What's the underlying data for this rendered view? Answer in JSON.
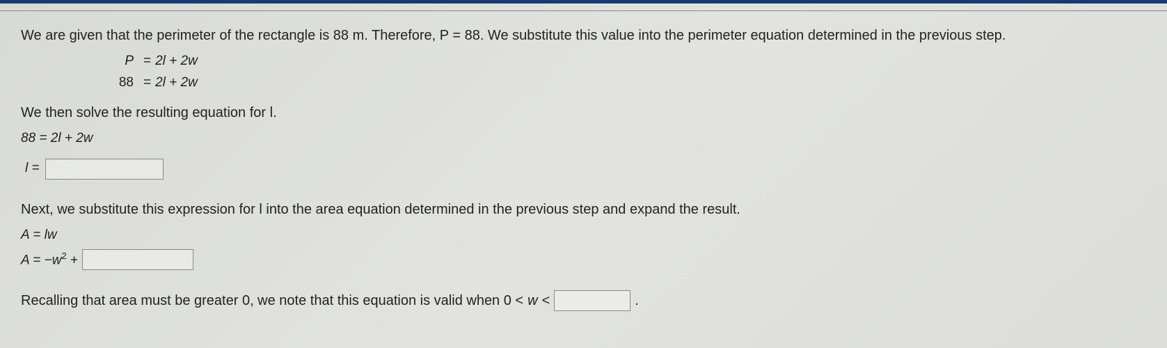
{
  "colors": {
    "top_bar": "#1a3a6e",
    "text": "#222222",
    "box_border": "#888888",
    "bg_tint": "#dcddd9"
  },
  "intro": "We are given that the perimeter of the rectangle is 88 m. Therefore, P = 88. We substitute this value into the perimeter equation determined in the previous step.",
  "eq1": {
    "lhs": "P",
    "rhs": "2l + 2w"
  },
  "eq2": {
    "lhs": "88",
    "rhs": "2l + 2w"
  },
  "solve_prompt": "We then solve the resulting equation for l.",
  "eq3": "88 = 2l + 2w",
  "l_equals_label": "l =",
  "substitute_prompt": "Next, we substitute this expression for l into the area equation determined in the previous step and expand the result.",
  "area_eq": "A = lw",
  "area_expand_prefix": "A = −w",
  "area_expand_exp": "2",
  "area_expand_plus": " + ",
  "final_prefix": "Recalling that area must be greater 0, we note that this equation is valid when 0 < ",
  "final_var": "w",
  "final_lt": " < ",
  "final_period": "."
}
